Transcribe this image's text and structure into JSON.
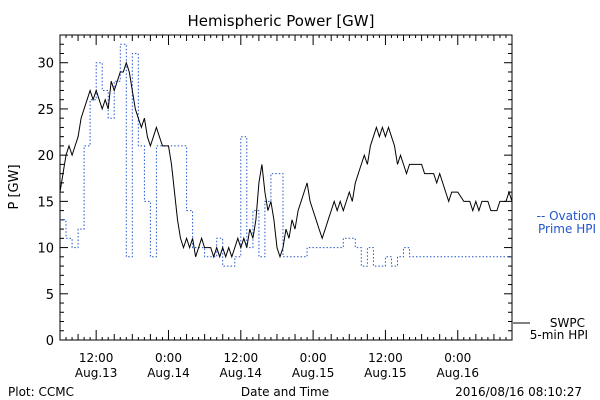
{
  "chart_data": {
    "type": "line",
    "title": "Hemispheric Power [GW]",
    "ylabel": "P [GW]",
    "xlabel": "Date and Time",
    "ylim": [
      0,
      33
    ],
    "yticks": [
      0,
      5,
      10,
      15,
      20,
      25,
      30
    ],
    "x_axis": {
      "start": "2016-08-13 06:00",
      "end": "2016-08-16 09:00",
      "tick_labels": [
        {
          "at": "2016-08-13 12:00",
          "line1": "12:00",
          "line2": "Aug.13"
        },
        {
          "at": "2016-08-14 00:00",
          "line1": "0:00",
          "line2": "Aug.14"
        },
        {
          "at": "2016-08-14 12:00",
          "line1": "12:00",
          "line2": "Aug.14"
        },
        {
          "at": "2016-08-15 00:00",
          "line1": "0:00",
          "line2": "Aug.15"
        },
        {
          "at": "2016-08-15 12:00",
          "line1": "12:00",
          "line2": "Aug.15"
        },
        {
          "at": "2016-08-16 00:00",
          "line1": "0:00",
          "line2": "Aug.16"
        }
      ]
    },
    "series": [
      {
        "name": "Ovation Prime HPI",
        "label_line1": "-- Ovation",
        "label_line2": "Prime HPI",
        "color": "#2255cc",
        "style": "dotted",
        "points": [
          [
            "2016-08-13 06:00",
            13
          ],
          [
            "2016-08-13 07:00",
            13
          ],
          [
            "2016-08-13 07:00",
            11
          ],
          [
            "2016-08-13 08:00",
            11
          ],
          [
            "2016-08-13 08:00",
            10
          ],
          [
            "2016-08-13 09:00",
            10
          ],
          [
            "2016-08-13 09:00",
            12
          ],
          [
            "2016-08-13 10:00",
            12
          ],
          [
            "2016-08-13 10:00",
            21
          ],
          [
            "2016-08-13 11:00",
            21
          ],
          [
            "2016-08-13 11:00",
            26
          ],
          [
            "2016-08-13 12:00",
            26
          ],
          [
            "2016-08-13 12:00",
            30
          ],
          [
            "2016-08-13 13:00",
            30
          ],
          [
            "2016-08-13 13:00",
            27
          ],
          [
            "2016-08-13 14:00",
            27
          ],
          [
            "2016-08-13 14:00",
            24
          ],
          [
            "2016-08-13 15:00",
            24
          ],
          [
            "2016-08-13 15:00",
            28
          ],
          [
            "2016-08-13 16:00",
            28
          ],
          [
            "2016-08-13 16:00",
            32
          ],
          [
            "2016-08-13 17:00",
            32
          ],
          [
            "2016-08-13 17:00",
            9
          ],
          [
            "2016-08-13 18:00",
            9
          ],
          [
            "2016-08-13 18:00",
            31
          ],
          [
            "2016-08-13 19:00",
            31
          ],
          [
            "2016-08-13 19:00",
            21
          ],
          [
            "2016-08-13 20:00",
            21
          ],
          [
            "2016-08-13 20:00",
            15
          ],
          [
            "2016-08-13 21:00",
            15
          ],
          [
            "2016-08-13 21:00",
            9
          ],
          [
            "2016-08-13 22:00",
            9
          ],
          [
            "2016-08-13 22:00",
            21
          ],
          [
            "2016-08-14 03:00",
            21
          ],
          [
            "2016-08-14 03:00",
            14
          ],
          [
            "2016-08-14 04:00",
            14
          ],
          [
            "2016-08-14 04:00",
            10
          ],
          [
            "2016-08-14 06:00",
            10
          ],
          [
            "2016-08-14 06:00",
            9
          ],
          [
            "2016-08-14 08:00",
            9
          ],
          [
            "2016-08-14 08:00",
            11
          ],
          [
            "2016-08-14 09:00",
            11
          ],
          [
            "2016-08-14 09:00",
            8
          ],
          [
            "2016-08-14 11:00",
            8
          ],
          [
            "2016-08-14 11:00",
            9
          ],
          [
            "2016-08-14 12:00",
            9
          ],
          [
            "2016-08-14 12:00",
            22
          ],
          [
            "2016-08-14 13:00",
            22
          ],
          [
            "2016-08-14 13:00",
            10
          ],
          [
            "2016-08-14 14:00",
            10
          ],
          [
            "2016-08-14 14:00",
            14
          ],
          [
            "2016-08-14 15:00",
            14
          ],
          [
            "2016-08-14 15:00",
            9
          ],
          [
            "2016-08-14 16:00",
            9
          ],
          [
            "2016-08-14 16:00",
            15
          ],
          [
            "2016-08-14 17:00",
            15
          ],
          [
            "2016-08-14 17:00",
            18
          ],
          [
            "2016-08-14 19:00",
            18
          ],
          [
            "2016-08-14 19:00",
            9
          ],
          [
            "2016-08-14 23:00",
            9
          ],
          [
            "2016-08-14 23:00",
            10
          ],
          [
            "2016-08-15 05:00",
            10
          ],
          [
            "2016-08-15 05:00",
            11
          ],
          [
            "2016-08-15 07:00",
            11
          ],
          [
            "2016-08-15 07:00",
            10
          ],
          [
            "2016-08-15 08:00",
            10
          ],
          [
            "2016-08-15 08:00",
            8
          ],
          [
            "2016-08-15 09:00",
            8
          ],
          [
            "2016-08-15 09:00",
            10
          ],
          [
            "2016-08-15 10:00",
            10
          ],
          [
            "2016-08-15 10:00",
            8
          ],
          [
            "2016-08-15 12:00",
            8
          ],
          [
            "2016-08-15 12:00",
            9
          ],
          [
            "2016-08-15 13:00",
            9
          ],
          [
            "2016-08-15 13:00",
            8
          ],
          [
            "2016-08-15 14:00",
            8
          ],
          [
            "2016-08-15 14:00",
            9
          ],
          [
            "2016-08-15 15:00",
            9
          ],
          [
            "2016-08-15 15:00",
            10
          ],
          [
            "2016-08-15 16:00",
            10
          ],
          [
            "2016-08-15 16:00",
            9
          ],
          [
            "2016-08-16 06:00",
            9
          ],
          [
            "2016-08-16 09:00",
            9
          ]
        ]
      },
      {
        "name": "SWPC 5-min HPI",
        "label_line1": "SWPC",
        "label_line2": "5-min HPI",
        "color": "#000000",
        "style": "solid",
        "points": [
          [
            "2016-08-13 06:00",
            16
          ],
          [
            "2016-08-13 06:30",
            18
          ],
          [
            "2016-08-13 07:00",
            20
          ],
          [
            "2016-08-13 07:30",
            21
          ],
          [
            "2016-08-13 08:00",
            20
          ],
          [
            "2016-08-13 08:30",
            21
          ],
          [
            "2016-08-13 09:00",
            22
          ],
          [
            "2016-08-13 09:30",
            24
          ],
          [
            "2016-08-13 10:00",
            25
          ],
          [
            "2016-08-13 10:30",
            26
          ],
          [
            "2016-08-13 11:00",
            27
          ],
          [
            "2016-08-13 11:30",
            26
          ],
          [
            "2016-08-13 12:00",
            27
          ],
          [
            "2016-08-13 12:30",
            26
          ],
          [
            "2016-08-13 13:00",
            25
          ],
          [
            "2016-08-13 13:30",
            26
          ],
          [
            "2016-08-13 14:00",
            25
          ],
          [
            "2016-08-13 14:30",
            28
          ],
          [
            "2016-08-13 15:00",
            27
          ],
          [
            "2016-08-13 15:30",
            28
          ],
          [
            "2016-08-13 16:00",
            29
          ],
          [
            "2016-08-13 16:30",
            29
          ],
          [
            "2016-08-13 17:00",
            30
          ],
          [
            "2016-08-13 17:30",
            29
          ],
          [
            "2016-08-13 18:00",
            27
          ],
          [
            "2016-08-13 18:30",
            25
          ],
          [
            "2016-08-13 19:00",
            24
          ],
          [
            "2016-08-13 19:30",
            23
          ],
          [
            "2016-08-13 20:00",
            24
          ],
          [
            "2016-08-13 20:30",
            22
          ],
          [
            "2016-08-13 21:00",
            21
          ],
          [
            "2016-08-13 21:30",
            22
          ],
          [
            "2016-08-13 22:00",
            23
          ],
          [
            "2016-08-13 22:30",
            22
          ],
          [
            "2016-08-13 23:00",
            21
          ],
          [
            "2016-08-14 00:00",
            21
          ],
          [
            "2016-08-14 00:30",
            19
          ],
          [
            "2016-08-14 01:00",
            16
          ],
          [
            "2016-08-14 01:30",
            13
          ],
          [
            "2016-08-14 02:00",
            11
          ],
          [
            "2016-08-14 02:30",
            10
          ],
          [
            "2016-08-14 03:00",
            11
          ],
          [
            "2016-08-14 03:30",
            10
          ],
          [
            "2016-08-14 04:00",
            11
          ],
          [
            "2016-08-14 04:30",
            9
          ],
          [
            "2016-08-14 05:00",
            10
          ],
          [
            "2016-08-14 05:30",
            11
          ],
          [
            "2016-08-14 06:00",
            10
          ],
          [
            "2016-08-14 07:00",
            10
          ],
          [
            "2016-08-14 07:30",
            9
          ],
          [
            "2016-08-14 08:00",
            10
          ],
          [
            "2016-08-14 08:30",
            9
          ],
          [
            "2016-08-14 09:00",
            10
          ],
          [
            "2016-08-14 09:30",
            9
          ],
          [
            "2016-08-14 10:00",
            10
          ],
          [
            "2016-08-14 10:30",
            9
          ],
          [
            "2016-08-14 11:00",
            10
          ],
          [
            "2016-08-14 11:30",
            11
          ],
          [
            "2016-08-14 12:00",
            10
          ],
          [
            "2016-08-14 12:30",
            11
          ],
          [
            "2016-08-14 13:00",
            10
          ],
          [
            "2016-08-14 13:30",
            12
          ],
          [
            "2016-08-14 14:00",
            11
          ],
          [
            "2016-08-14 14:30",
            13
          ],
          [
            "2016-08-14 15:00",
            17
          ],
          [
            "2016-08-14 15:30",
            19
          ],
          [
            "2016-08-14 16:00",
            16
          ],
          [
            "2016-08-14 16:30",
            14
          ],
          [
            "2016-08-14 17:00",
            15
          ],
          [
            "2016-08-14 17:30",
            13
          ],
          [
            "2016-08-14 18:00",
            10
          ],
          [
            "2016-08-14 18:30",
            9
          ],
          [
            "2016-08-14 19:00",
            10
          ],
          [
            "2016-08-14 19:30",
            12
          ],
          [
            "2016-08-14 20:00",
            11
          ],
          [
            "2016-08-14 20:30",
            13
          ],
          [
            "2016-08-14 21:00",
            12
          ],
          [
            "2016-08-14 21:30",
            14
          ],
          [
            "2016-08-14 22:00",
            15
          ],
          [
            "2016-08-14 22:30",
            16
          ],
          [
            "2016-08-14 23:00",
            17
          ],
          [
            "2016-08-14 23:30",
            15
          ],
          [
            "2016-08-15 00:00",
            14
          ],
          [
            "2016-08-15 00:30",
            13
          ],
          [
            "2016-08-15 01:00",
            12
          ],
          [
            "2016-08-15 01:30",
            11
          ],
          [
            "2016-08-15 02:00",
            12
          ],
          [
            "2016-08-15 02:30",
            13
          ],
          [
            "2016-08-15 03:00",
            14
          ],
          [
            "2016-08-15 03:30",
            15
          ],
          [
            "2016-08-15 04:00",
            14
          ],
          [
            "2016-08-15 04:30",
            15
          ],
          [
            "2016-08-15 05:00",
            14
          ],
          [
            "2016-08-15 05:30",
            15
          ],
          [
            "2016-08-15 06:00",
            16
          ],
          [
            "2016-08-15 06:30",
            15
          ],
          [
            "2016-08-15 07:00",
            17
          ],
          [
            "2016-08-15 07:30",
            18
          ],
          [
            "2016-08-15 08:00",
            19
          ],
          [
            "2016-08-15 08:30",
            20
          ],
          [
            "2016-08-15 09:00",
            19
          ],
          [
            "2016-08-15 09:30",
            21
          ],
          [
            "2016-08-15 10:00",
            22
          ],
          [
            "2016-08-15 10:30",
            23
          ],
          [
            "2016-08-15 11:00",
            22
          ],
          [
            "2016-08-15 11:30",
            23
          ],
          [
            "2016-08-15 12:00",
            22
          ],
          [
            "2016-08-15 12:30",
            23
          ],
          [
            "2016-08-15 13:00",
            22
          ],
          [
            "2016-08-15 13:30",
            21
          ],
          [
            "2016-08-15 14:00",
            19
          ],
          [
            "2016-08-15 14:30",
            20
          ],
          [
            "2016-08-15 15:00",
            19
          ],
          [
            "2016-08-15 15:30",
            18
          ],
          [
            "2016-08-15 16:00",
            19
          ],
          [
            "2016-08-15 18:00",
            19
          ],
          [
            "2016-08-15 18:30",
            18
          ],
          [
            "2016-08-15 20:00",
            18
          ],
          [
            "2016-08-15 20:30",
            17
          ],
          [
            "2016-08-15 21:00",
            18
          ],
          [
            "2016-08-15 21:30",
            17
          ],
          [
            "2016-08-15 22:00",
            16
          ],
          [
            "2016-08-15 22:30",
            15
          ],
          [
            "2016-08-15 23:00",
            16
          ],
          [
            "2016-08-16 00:00",
            16
          ],
          [
            "2016-08-16 01:00",
            15
          ],
          [
            "2016-08-16 02:00",
            15
          ],
          [
            "2016-08-16 02:30",
            14
          ],
          [
            "2016-08-16 03:00",
            15
          ],
          [
            "2016-08-16 03:30",
            14
          ],
          [
            "2016-08-16 04:00",
            15
          ],
          [
            "2016-08-16 05:00",
            15
          ],
          [
            "2016-08-16 05:30",
            14
          ],
          [
            "2016-08-16 06:30",
            14
          ],
          [
            "2016-08-16 07:00",
            15
          ],
          [
            "2016-08-16 08:00",
            15
          ],
          [
            "2016-08-16 08:30",
            16
          ],
          [
            "2016-08-16 09:00",
            15
          ]
        ]
      }
    ]
  },
  "footer": {
    "plot_credit": "Plot: CCMC",
    "timestamp": "2016/08/16 08:10:27"
  }
}
